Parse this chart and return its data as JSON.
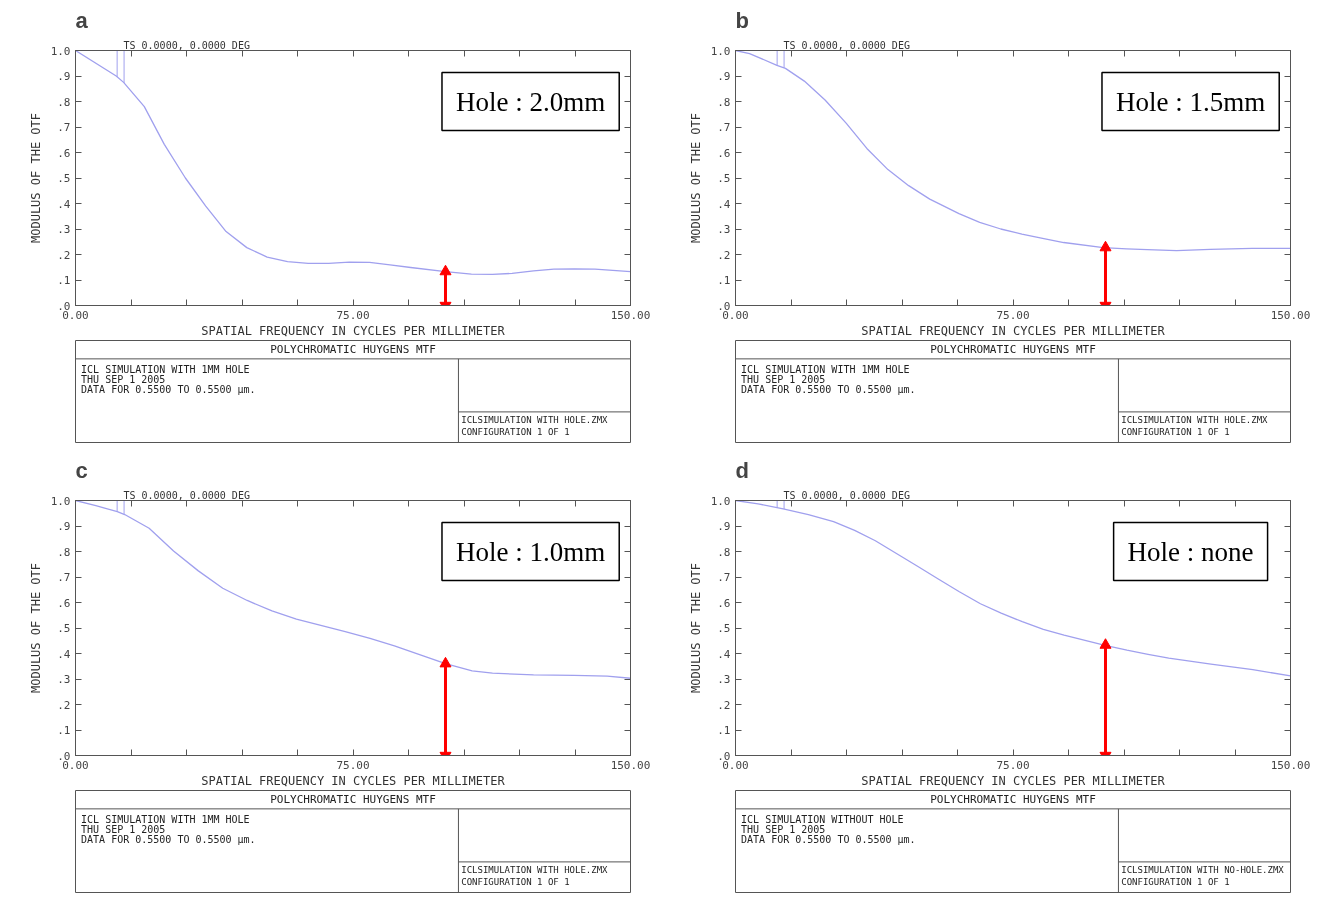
{
  "chart_data": [
    {
      "type": "line",
      "title": "POLYCHROMATIC HUYGENS MTF",
      "xlabel": "SPATIAL FREQUENCY IN CYCLES PER MILLIMETER",
      "ylabel": "MODULUS OF THE OTF",
      "annotations": [
        "a",
        "Hole : 2.0mm",
        "ICL SIMULATION WITH 1MM HOLE",
        "THU SEP 1 2005",
        "DATA FOR 0.5500 TO 0.5500 μm.",
        "ICLSIMULATION WITH HOLE.ZMX",
        "CONFIGURATION 1 OF 1"
      ],
      "series": [
        {
          "name": "TS 0.0000, 0.0000 DEG",
          "color": "#a0a0ee",
          "x": [
            0,
            11,
            13,
            18.6,
            24,
            29.7,
            35.2,
            40.7,
            46.3,
            51.8,
            57.3,
            62.9,
            68.4,
            74,
            79.5,
            85,
            90.6,
            100,
            107,
            112.7,
            118,
            123.8,
            129.3,
            134.8,
            140.4,
            150
          ],
          "values": [
            1.0,
            0.9,
            0.875,
            0.78,
            0.632,
            0.5,
            0.39,
            0.29,
            0.227,
            0.19,
            0.172,
            0.165,
            0.165,
            0.17,
            0.169,
            0.159,
            0.149,
            0.133,
            0.123,
            0.122,
            0.126,
            0.136,
            0.143,
            0.144,
            0.143,
            0.133
          ]
        },
        {
          "type": "line",
          "color": "#ff0000",
          "marker": "triangle",
          "x": [
            100,
            100
          ],
          "values": [
            0,
            0.133
          ]
        }
      ],
      "xlim": [
        0,
        150
      ],
      "ylim": [
        0,
        1
      ],
      "xticks": [
        {
          "value": 0,
          "label": "0.00"
        },
        {
          "value": 15,
          "label": null
        },
        {
          "value": 30,
          "label": null
        },
        {
          "value": 45,
          "label": null
        },
        {
          "value": 60,
          "label": null
        },
        {
          "value": 75,
          "label": "75.00"
        },
        {
          "value": 90,
          "label": null
        },
        {
          "value": 105,
          "label": null
        },
        {
          "value": 120,
          "label": null
        },
        {
          "value": 135,
          "label": null
        },
        {
          "value": 150,
          "label": "150.00"
        }
      ],
      "yticks": [
        {
          "value": 0,
          "label": ".0"
        },
        {
          "value": 0.1,
          "label": ".1"
        },
        {
          "value": 0.2,
          "label": ".2"
        },
        {
          "value": 0.3,
          "label": ".3"
        },
        {
          "value": 0.4,
          "label": ".4"
        },
        {
          "value": 0.5,
          "label": ".5"
        },
        {
          "value": 0.6,
          "label": ".6"
        },
        {
          "value": 0.7,
          "label": ".7"
        },
        {
          "value": 0.8,
          "label": ".8"
        },
        {
          "value": 0.9,
          "label": ".9"
        },
        {
          "value": 1,
          "label": "1.0"
        }
      ]
    },
    {
      "type": "line",
      "title": "POLYCHROMATIC HUYGENS MTF",
      "xlabel": "SPATIAL FREQUENCY IN CYCLES PER MILLIMETER",
      "ylabel": "MODULUS OF THE OTF",
      "annotations": [
        "b",
        "Hole : 1.5mm",
        "ICL SIMULATION WITH 1MM HOLE",
        "THU SEP 1 2005",
        "DATA FOR 0.5500 TO 0.5500 μm.",
        "ICLSIMULATION WITH HOLE.ZMX",
        "CONFIGURATION 1 OF 1"
      ],
      "series": [
        {
          "name": "TS 0.0000, 0.0000 DEG",
          "color": "#a0a0ee",
          "x": [
            0,
            3.8,
            11.2,
            13.5,
            18.6,
            24.2,
            29.9,
            35.5,
            41.2,
            46.8,
            52.5,
            60.4,
            66,
            71.7,
            77.4,
            83,
            88.7,
            99.4,
            105.7,
            111.3,
            119.2,
            128.3,
            139.6,
            150
          ],
          "values": [
            1.0,
            0.988,
            0.942,
            0.93,
            0.88,
            0.806,
            0.715,
            0.616,
            0.533,
            0.47,
            0.417,
            0.36,
            0.326,
            0.3,
            0.28,
            0.263,
            0.247,
            0.227,
            0.222,
            0.219,
            0.215,
            0.22,
            0.224,
            0.224
          ]
        },
        {
          "type": "line",
          "color": "#ff0000",
          "marker": "triangle",
          "x": [
            100,
            100
          ],
          "values": [
            0,
            0.227
          ]
        }
      ],
      "xlim": [
        0,
        150
      ],
      "ylim": [
        0,
        1
      ],
      "xticks": [
        {
          "value": 0,
          "label": "0.00"
        },
        {
          "value": 15,
          "label": null
        },
        {
          "value": 30,
          "label": null
        },
        {
          "value": 45,
          "label": null
        },
        {
          "value": 60,
          "label": null
        },
        {
          "value": 75,
          "label": "75.00"
        },
        {
          "value": 90,
          "label": null
        },
        {
          "value": 105,
          "label": null
        },
        {
          "value": 120,
          "label": null
        },
        {
          "value": 135,
          "label": null
        },
        {
          "value": 150,
          "label": "150.00"
        }
      ],
      "yticks": [
        {
          "value": 0,
          "label": ".0"
        },
        {
          "value": 0.1,
          "label": ".1"
        },
        {
          "value": 0.2,
          "label": ".2"
        },
        {
          "value": 0.3,
          "label": ".3"
        },
        {
          "value": 0.4,
          "label": ".4"
        },
        {
          "value": 0.5,
          "label": ".5"
        },
        {
          "value": 0.6,
          "label": ".6"
        },
        {
          "value": 0.7,
          "label": ".7"
        },
        {
          "value": 0.8,
          "label": ".8"
        },
        {
          "value": 0.9,
          "label": ".9"
        },
        {
          "value": 1,
          "label": "1.0"
        }
      ]
    },
    {
      "type": "line",
      "title": "POLYCHROMATIC HUYGENS MTF",
      "xlabel": "SPATIAL FREQUENCY IN CYCLES PER MILLIMETER",
      "ylabel": "MODULUS OF THE OTF",
      "annotations": [
        "c",
        "Hole : 1.0mm",
        "ICL SIMULATION WITH 1MM HOLE",
        "THU SEP 1 2005",
        "DATA FOR 0.5500 TO 0.5500 μm.",
        "ICLSIMULATION WITH HOLE.ZMX",
        "CONFIGURATION 1 OF 1"
      ],
      "series": [
        {
          "name": "TS 0.0000, 0.0000 DEG",
          "color": "#a0a0ee",
          "x": [
            0,
            5.5,
            11.3,
            13.3,
            19.9,
            26.5,
            33.2,
            39.8,
            46.4,
            53.1,
            59.7,
            66.3,
            72.9,
            79.6,
            86.2,
            92.8,
            100,
            107.2,
            112.7,
            123.8,
            134.8,
            143.7,
            150
          ],
          "values": [
            1.0,
            0.98,
            0.956,
            0.945,
            0.891,
            0.802,
            0.724,
            0.656,
            0.608,
            0.567,
            0.535,
            0.51,
            0.486,
            0.459,
            0.43,
            0.397,
            0.36,
            0.332,
            0.323,
            0.316,
            0.314,
            0.311,
            0.303
          ]
        },
        {
          "type": "line",
          "color": "#ff0000",
          "marker": "triangle",
          "x": [
            100,
            100
          ],
          "values": [
            0,
            0.36
          ]
        }
      ],
      "xlim": [
        0,
        150
      ],
      "ylim": [
        0,
        1
      ],
      "xticks": [
        {
          "value": 0,
          "label": "0.00"
        },
        {
          "value": 15,
          "label": null
        },
        {
          "value": 30,
          "label": null
        },
        {
          "value": 45,
          "label": null
        },
        {
          "value": 60,
          "label": null
        },
        {
          "value": 75,
          "label": "75.00"
        },
        {
          "value": 90,
          "label": null
        },
        {
          "value": 105,
          "label": null
        },
        {
          "value": 120,
          "label": null
        },
        {
          "value": 135,
          "label": null
        },
        {
          "value": 150,
          "label": "150.00"
        }
      ],
      "yticks": [
        {
          "value": 0,
          "label": ".0"
        },
        {
          "value": 0.1,
          "label": ".1"
        },
        {
          "value": 0.2,
          "label": ".2"
        },
        {
          "value": 0.3,
          "label": ".3"
        },
        {
          "value": 0.4,
          "label": ".4"
        },
        {
          "value": 0.5,
          "label": ".5"
        },
        {
          "value": 0.6,
          "label": ".6"
        },
        {
          "value": 0.7,
          "label": ".7"
        },
        {
          "value": 0.8,
          "label": ".8"
        },
        {
          "value": 0.9,
          "label": ".9"
        },
        {
          "value": 1,
          "label": "1.0"
        }
      ]
    },
    {
      "type": "line",
      "title": "POLYCHROMATIC HUYGENS MTF",
      "xlabel": "SPATIAL FREQUENCY IN CYCLES PER MILLIMETER",
      "ylabel": "MODULUS OF THE OTF",
      "annotations": [
        "d",
        "Hole : none",
        "ICL SIMULATION WITHOUT HOLE",
        "THU SEP 1 2005",
        "DATA FOR 0.5500 TO 0.5500 μm.",
        "ICLSIMULATION WITH NO-HOLE.ZMX",
        "CONFIGURATION 1 OF 1"
      ],
      "series": [
        {
          "name": "TS 0.0000, 0.0000 DEG",
          "color": "#a0a0ee",
          "x": [
            0,
            6.1,
            12.9,
            19.7,
            26.5,
            32.2,
            37.8,
            43.5,
            49.2,
            54.8,
            60.5,
            66.2,
            71.8,
            77.5,
            83.2,
            88.8,
            99.6,
            105.8,
            111.5,
            117.1,
            128.5,
            139.8,
            150
          ],
          "values": [
            1.0,
            0.987,
            0.967,
            0.945,
            0.917,
            0.883,
            0.842,
            0.792,
            0.742,
            0.692,
            0.642,
            0.595,
            0.558,
            0.525,
            0.495,
            0.472,
            0.433,
            0.413,
            0.397,
            0.382,
            0.358,
            0.337,
            0.312
          ]
        },
        {
          "type": "line",
          "color": "#ff0000",
          "marker": "triangle",
          "x": [
            100,
            100
          ],
          "values": [
            0,
            0.433
          ]
        }
      ],
      "xlim": [
        0,
        150
      ],
      "ylim": [
        0,
        1
      ],
      "xticks": [
        {
          "value": 0,
          "label": "0.00"
        },
        {
          "value": 15,
          "label": null
        },
        {
          "value": 30,
          "label": null
        },
        {
          "value": 45,
          "label": null
        },
        {
          "value": 60,
          "label": null
        },
        {
          "value": 75,
          "label": "75.00"
        },
        {
          "value": 90,
          "label": null
        },
        {
          "value": 105,
          "label": null
        },
        {
          "value": 120,
          "label": null
        },
        {
          "value": 135,
          "label": null
        },
        {
          "value": 150,
          "label": "150.00"
        }
      ],
      "yticks": [
        {
          "value": 0,
          "label": ".0"
        },
        {
          "value": 0.1,
          "label": ".1"
        },
        {
          "value": 0.2,
          "label": ".2"
        },
        {
          "value": 0.3,
          "label": ".3"
        },
        {
          "value": 0.4,
          "label": ".4"
        },
        {
          "value": 0.5,
          "label": ".5"
        },
        {
          "value": 0.6,
          "label": ".6"
        },
        {
          "value": 0.7,
          "label": ".7"
        },
        {
          "value": 0.8,
          "label": ".8"
        },
        {
          "value": 0.9,
          "label": ".9"
        },
        {
          "value": 1,
          "label": "1.0"
        }
      ]
    }
  ]
}
